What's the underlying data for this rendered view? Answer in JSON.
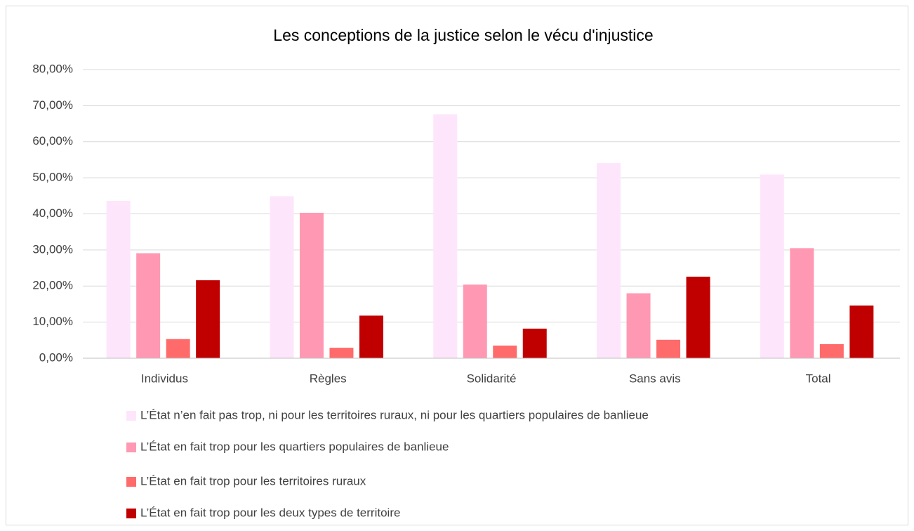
{
  "chart_data": {
    "type": "bar",
    "title": "Les conceptions de la justice selon le vécu d'injustice",
    "categories": [
      "Individus",
      "Règles",
      "Solidarité",
      "Sans avis",
      "Total"
    ],
    "series": [
      {
        "name": "L’État n’en fait pas trop, ni pour les territoires ruraux, ni pour les quartiers populaires de banlieue",
        "color": "#fde6fb",
        "values": [
          43.6,
          44.9,
          67.6,
          54.1,
          50.9
        ]
      },
      {
        "name": "L’État en fait trop pour les quartiers populaires de banlieue",
        "color": "#ff99b3",
        "values": [
          29.1,
          40.3,
          20.4,
          18.0,
          30.5
        ]
      },
      {
        "name": "L’État en fait trop pour les territoires ruraux",
        "color": "#ff6b6b",
        "values": [
          5.3,
          2.9,
          3.5,
          5.1,
          3.9
        ]
      },
      {
        "name": "L’État en fait trop pour les deux types de territoire",
        "color": "#c00000",
        "values": [
          21.6,
          11.8,
          8.2,
          22.6,
          14.6
        ]
      }
    ],
    "ylim": [
      0,
      80
    ],
    "yticks": [
      {
        "value": 0,
        "label": "0,00%"
      },
      {
        "value": 10,
        "label": "10,00%"
      },
      {
        "value": 20,
        "label": "20,00%"
      },
      {
        "value": 30,
        "label": "30,00%"
      },
      {
        "value": 40,
        "label": "40,00%"
      },
      {
        "value": 50,
        "label": "50,00%"
      },
      {
        "value": 60,
        "label": "60,00%"
      },
      {
        "value": 70,
        "label": "70,00%"
      },
      {
        "value": 80,
        "label": "80,00%"
      }
    ],
    "grid": true,
    "legend": "bottom"
  }
}
